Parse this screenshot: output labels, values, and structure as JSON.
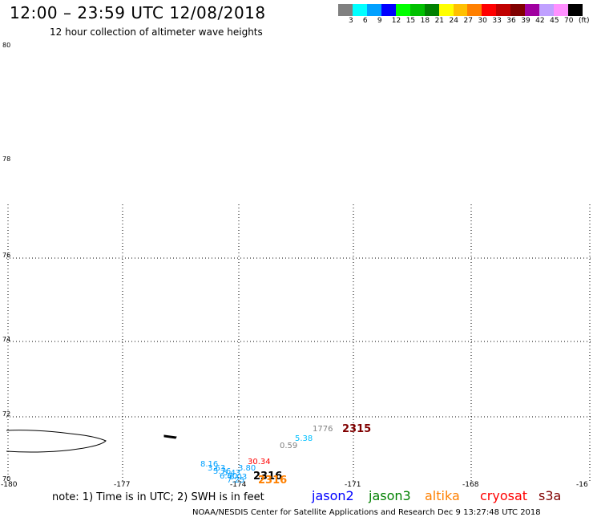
{
  "header": {
    "title": "12:00 – 23:59 UTC 12/08/2018",
    "subtitle": "12 hour collection of altimeter wave heights"
  },
  "colorbar": {
    "colors": [
      "#808080",
      "#00ffff",
      "#00a0ff",
      "#0000ff",
      "#00ff00",
      "#00c000",
      "#008000",
      "#ffff00",
      "#ffc000",
      "#ff8000",
      "#ff0000",
      "#c00000",
      "#800000",
      "#a000a0",
      "#c0a0ff",
      "#ff90ff",
      "#000000"
    ],
    "labels": [
      "3",
      "6",
      "9",
      "12",
      "15",
      "18",
      "21",
      "24",
      "27",
      "30",
      "33",
      "36",
      "39",
      "42",
      "45",
      "70",
      "(ft)"
    ]
  },
  "map": {
    "lat_labels": [
      "80",
      "78",
      "76",
      "74",
      "72",
      "70"
    ],
    "lon_labels": [
      "-180",
      "-177",
      "-174",
      "-171",
      "-168",
      "-16"
    ]
  },
  "observations": [
    {
      "text": "2315",
      "color": "#800000",
      "big": true
    },
    {
      "text": "1776",
      "color": "#808080",
      "big": false
    },
    {
      "text": "5.38",
      "color": "#00c0ff",
      "big": false
    },
    {
      "text": "0.59",
      "color": "#808080",
      "big": false
    },
    {
      "text": "30.34",
      "color": "#ff0000",
      "big": false
    },
    {
      "text": "8.16",
      "color": "#00a0ff",
      "big": false
    },
    {
      "text": "3.63",
      "color": "#00a0ff",
      "big": false
    },
    {
      "text": "3.80",
      "color": "#00a0ff",
      "big": false
    },
    {
      "text": "5.76",
      "color": "#00a0ff",
      "big": false
    },
    {
      "text": "5.43",
      "color": "#00a0ff",
      "big": false
    },
    {
      "text": "6.60",
      "color": "#00a0ff",
      "big": false
    },
    {
      "text": "6.03",
      "color": "#00a0ff",
      "big": false
    },
    {
      "text": "7.25",
      "color": "#00a0ff",
      "big": false
    },
    {
      "text": "2316",
      "color": "#000000",
      "big": true
    },
    {
      "text": "2316",
      "color": "#ff8000",
      "big": true
    }
  ],
  "footer": {
    "note": "note:  1) Time is in UTC;  2) SWH is in feet",
    "legend": [
      {
        "label": "jason2",
        "color": "#0000ff"
      },
      {
        "label": "jason3",
        "color": "#008000"
      },
      {
        "label": "altika",
        "color": "#ff8000"
      },
      {
        "label": "cryosat",
        "color": "#ff0000"
      },
      {
        "label": "s3a",
        "color": "#800000"
      }
    ],
    "credit": "NOAA/NESDIS Center for Satellite Applications and Research    Dec  9 13:27:48 UTC 2018"
  }
}
